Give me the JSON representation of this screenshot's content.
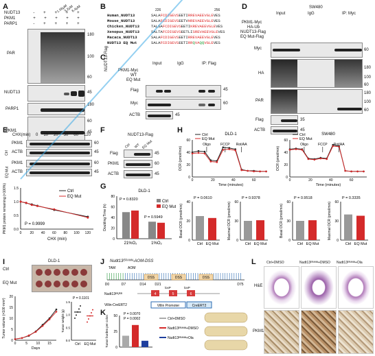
{
  "panels": {
    "A": "A",
    "B": "B",
    "C": "C",
    "D": "D",
    "E": "E",
    "F": "F",
    "G": "G",
    "H": "H",
    "I": "I",
    "J": "J",
    "K": "K",
    "L": "L"
  },
  "panelA": {
    "rows": [
      "NUDT13",
      "PKM1",
      "PARP1"
    ],
    "conc": [
      "1.56μM",
      "3.2μM",
      "6.4μM"
    ],
    "row_signs": [
      [
        "-",
        "+",
        "+",
        "+",
        "+"
      ],
      [
        "+",
        "+",
        "+",
        "+",
        "+"
      ],
      [
        "-",
        "+",
        "+",
        "+",
        "+"
      ]
    ],
    "blots": [
      "PAR",
      "NUDT13",
      "PARP1",
      "PKM1"
    ],
    "markers": [
      "180",
      "100",
      "60",
      "45",
      "180",
      "60",
      "45",
      "60"
    ]
  },
  "panelB": {
    "pos_start": "226",
    "pos_end": "256",
    "rows": [
      {
        "name": "Human_NUDT13",
        "seq": "SALAFCDIGEVSEETIRREVAEEVGLEVES"
      },
      {
        "name": "Mouse_NUDT13",
        "seq": "SALAFCDIGEVSEETVHREVAEEVGLEVES"
      },
      {
        "name": "Chicken_NUDT13",
        "seq": "TALSAFCDIGEVSEETIKREVAEEVGLEVES"
      },
      {
        "name": "Xenopus_NUDT13",
        "seq": "SALTAFCDIGEVSEETLISREVAEEVGLEVES"
      },
      {
        "name": "Macaca_NUDT13",
        "seq": "SALAFCDIGEVSEETIRREVAEEVGLEVES"
      },
      {
        "name": "NUDT13 EQ Mut",
        "seq": "SALAFCDIGEVSEETIRRQVAQQVGLEVES"
      }
    ]
  },
  "panelC": {
    "side": "NUDT13-Flag",
    "groups": [
      "Input",
      "IgG",
      "IP: Flag"
    ],
    "rows": [
      "PKM1-Myc",
      "WT",
      "EQ Mut"
    ],
    "blots": [
      "Flag",
      "Myc",
      "ACTB"
    ],
    "markers": [
      "45",
      "60",
      "45"
    ]
  },
  "panelD": {
    "cell": "SW480",
    "groups": [
      "Input",
      "IgG",
      "IP: Myc"
    ],
    "rows": [
      "PKM1-Myc",
      "HA-Ub",
      "NUDT13-Flag",
      "EQ Mut-Flag"
    ],
    "blots": [
      "Myc",
      "HA",
      "PAR",
      "Flag",
      "ACTB"
    ],
    "markers": [
      "60",
      "180",
      "100",
      "60",
      "180",
      "100",
      "60",
      "35",
      "45"
    ]
  },
  "panelE": {
    "header": "CHX(min)",
    "times": [
      "0",
      "10",
      "20",
      "30",
      "60",
      "120"
    ],
    "groups": [
      "Ctrl",
      "EQ Mut"
    ],
    "blots": [
      "PKM1",
      "ACTB",
      "PKM1",
      "ACTB"
    ],
    "markers": [
      "60",
      "45",
      "60",
      "45"
    ],
    "ylabel": "PKM1 protein remaining (×100%)",
    "xlabel": "CHX (min)",
    "pvalue": "P = 0.9999",
    "legend": [
      "Ctrl",
      "EQ Mut"
    ]
  },
  "panelF": {
    "title": "NUDT13-Flag",
    "lanes": [
      "Ctrl",
      "WT",
      "EQ Mut"
    ],
    "blots": [
      "Flag",
      "PKM1",
      "ACTB"
    ],
    "markers": [
      "45",
      "60",
      "45"
    ]
  },
  "panelG": {
    "title": "DLD-1",
    "ylabel": "Doubling Time (h)",
    "p1": "P = 0.8320",
    "p2": "P = 0.5949",
    "xlabels": [
      "21%O₂",
      "1%O₂"
    ],
    "legend": [
      "Ctrl",
      "EQ Mut"
    ]
  },
  "panelH": {
    "cell1": "DLD-1",
    "cell2": "SW480",
    "ylabel": "OCR (pmol/min)",
    "xlabel": "Time (minutes)",
    "legend": [
      "Ctrl",
      "EQ Mut"
    ],
    "injections": [
      "Oligo",
      "FCCP",
      "Rot/AA"
    ],
    "bars": [
      {
        "label": "Basal OCR (pmol/min)",
        "p": "P = 0.0610"
      },
      {
        "label": "Maximal OCR (pmol/min)",
        "p": "P = 0.9378"
      },
      {
        "label": "Basal OCR (pmol/min)",
        "p": "P = 0.9518"
      },
      {
        "label": "Maximal OCR (pmol/min)",
        "p": "P = 0.3335"
      }
    ],
    "bar_x": [
      "Ctrl",
      "EQ Mut"
    ]
  },
  "panelI": {
    "title": "DLD-1",
    "legend": [
      "Ctrl",
      "EQ Mut"
    ],
    "ylabel": "Tumor volume (×100 mm³)",
    "xlabel": "Days",
    "p": "P = 0.1101",
    "wlabel": "Tumor weight (g)",
    "wx": [
      "Ctrl",
      "EQ Mut"
    ]
  },
  "panelJ": {
    "title": "Nudt13ᴱᴿᴬᴺᴺ-AOM-DSS",
    "tam": "TAM",
    "aom": "AOM",
    "days": [
      "D0",
      "D7",
      "D14",
      "D21",
      "D75"
    ],
    "dss": [
      "DSS",
      "DSS",
      "DSS"
    ],
    "alleles": [
      "Nudt13ᴱᴿ/ᴱᴿ",
      "Villin-CreERT2"
    ],
    "exons": [
      "4",
      "5",
      "6"
    ],
    "loxp": [
      "loxP",
      "loxP"
    ],
    "promoter": "Villin Promoter",
    "cre": "CreERT2"
  },
  "panelK": {
    "ylabel": "Tumor burden per colon",
    "p1": "P = 0.0070",
    "p2": "P = 0.0002",
    "legend": [
      "Ctrl+DMSO",
      "Nudt13ᴱᴿᴬᴺᴺ+DMSO",
      "Nudt13ᴱᴿᴬᴺᴺ+Ola"
    ]
  },
  "panelL": {
    "cols": [
      "Ctrl+DMSO",
      "Nudt13ᴱᴿᴬᴺᴺ+DMSO",
      "Nudt13ᴱᴿᴬᴺᴺ+Ola"
    ],
    "rows": [
      "H&E",
      "PKM1"
    ]
  },
  "colors": {
    "ctrl": "#222222",
    "eq": "#d42a2a",
    "ola": "#1f3f9e",
    "watermark": "#3aaae6"
  },
  "chart_data": [
    {
      "type": "line",
      "title": "",
      "xlabel": "CHX (min)",
      "ylabel": "PKM1 protein remaining (×100%)",
      "x": [
        0,
        10,
        20,
        30,
        60,
        120
      ],
      "ylim": [
        0,
        1.5
      ],
      "series": [
        {
          "name": "Ctrl",
          "values": [
            1.0,
            0.95,
            0.9,
            0.85,
            0.7,
            0.45
          ]
        },
        {
          "name": "EQ Mut",
          "values": [
            1.0,
            0.96,
            0.88,
            0.84,
            0.72,
            0.42
          ]
        }
      ]
    },
    {
      "type": "bar",
      "title": "DLD-1",
      "ylabel": "Doubling Time (h)",
      "categories": [
        "21%O₂",
        "1%O₂"
      ],
      "ylim": [
        0,
        80
      ],
      "series": [
        {
          "name": "Ctrl",
          "values": [
            50,
            32
          ]
        },
        {
          "name": "EQ Mut",
          "values": [
            53,
            30
          ]
        }
      ]
    },
    {
      "type": "line",
      "title": "DLD-1",
      "xlabel": "Time (minutes)",
      "ylabel": "OCR (pmol/min)",
      "x": [
        0,
        6,
        12,
        18,
        24,
        30,
        36,
        42,
        48,
        54,
        60,
        66,
        72
      ],
      "ylim": [
        0,
        60
      ],
      "series": [
        {
          "name": "Ctrl",
          "values": [
            40,
            42,
            41,
            27,
            26,
            48,
            47,
            45,
            12,
            10,
            10,
            9,
            9
          ]
        },
        {
          "name": "EQ Mut",
          "values": [
            38,
            39,
            38,
            25,
            24,
            44,
            45,
            43,
            11,
            10,
            9,
            9,
            9
          ]
        }
      ]
    },
    {
      "type": "line",
      "title": "SW480",
      "xlabel": "Time (minutes)",
      "ylabel": "OCR (pmol/min)",
      "x": [
        0,
        6,
        12,
        18,
        24,
        30,
        36,
        42,
        48,
        54,
        60,
        66,
        72
      ],
      "ylim": [
        0,
        60
      ],
      "series": [
        {
          "name": "Ctrl",
          "values": [
            45,
            46,
            45,
            30,
            29,
            31,
            30,
            52,
            50,
            10,
            9,
            9,
            9
          ]
        },
        {
          "name": "EQ Mut",
          "values": [
            44,
            45,
            44,
            29,
            28,
            30,
            29,
            50,
            49,
            10,
            9,
            9,
            9
          ]
        }
      ]
    },
    {
      "type": "bar",
      "ylabel": "Basal OCR (pmol/min)",
      "categories": [
        "Ctrl",
        "EQ Mut"
      ],
      "values": [
        25,
        23
      ]
    },
    {
      "type": "bar",
      "ylabel": "Maximal OCR (pmol/min)",
      "categories": [
        "Ctrl",
        "EQ Mut"
      ],
      "values": [
        30,
        31
      ]
    },
    {
      "type": "bar",
      "ylabel": "Basal OCR (pmol/min)",
      "categories": [
        "Ctrl",
        "EQ Mut"
      ],
      "values": [
        30,
        31
      ]
    },
    {
      "type": "bar",
      "ylabel": "Maximal OCR (pmol/min)",
      "categories": [
        "Ctrl",
        "EQ Mut"
      ],
      "values": [
        40,
        38
      ]
    },
    {
      "type": "line",
      "title": "DLD-1",
      "xlabel": "Days",
      "ylabel": "Tumor volume (×100 mm³)",
      "x": [
        0,
        3,
        6,
        9,
        12,
        15,
        18
      ],
      "ylim": [
        0,
        20
      ],
      "series": [
        {
          "name": "Ctrl",
          "values": [
            0.5,
            1,
            2,
            4,
            7,
            10,
            14
          ]
        },
        {
          "name": "EQ Mut",
          "values": [
            0.5,
            1,
            2.2,
            3.8,
            6.5,
            9.5,
            13
          ]
        }
      ]
    },
    {
      "type": "bar",
      "ylabel": "Tumor weight (g)",
      "categories": [
        "Ctrl",
        "EQ Mut"
      ],
      "values": [
        1.1,
        0.95
      ],
      "ylim": [
        0,
        1.5
      ]
    },
    {
      "type": "bar",
      "ylabel": "Tumor burden per colon",
      "categories": [
        "Ctrl+DMSO",
        "Nudt13ᴱᴿᴬᴺᴺ+DMSO",
        "Nudt13ᴱᴿᴬᴺᴺ+Ola"
      ],
      "values": [
        18,
        35,
        10
      ],
      "ylim": [
        0,
        50
      ]
    }
  ]
}
